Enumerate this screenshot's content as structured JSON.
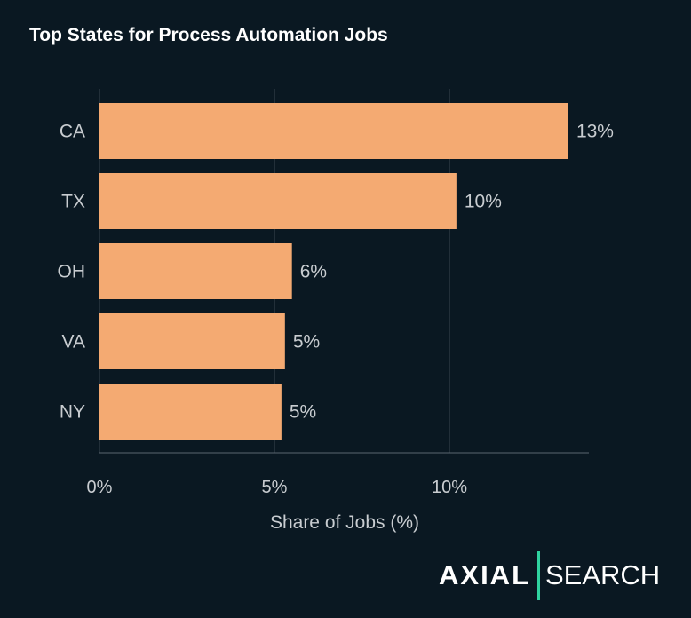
{
  "chart_data": {
    "type": "bar",
    "orientation": "horizontal",
    "title": "Top States for Process Automation Jobs",
    "xlabel": "Share of Jobs (%)",
    "ylabel": "",
    "categories": [
      "CA",
      "TX",
      "OH",
      "VA",
      "NY"
    ],
    "values": [
      13.4,
      10.2,
      5.5,
      5.3,
      5.2
    ],
    "data_labels": [
      "13%",
      "10%",
      "6%",
      "5%",
      "5%"
    ],
    "xlim": [
      0,
      14
    ],
    "xticks": [
      0,
      5,
      10
    ],
    "xtick_labels": [
      "0%",
      "5%",
      "10%"
    ],
    "grid": "vertical",
    "bar_color": "#f4aa72",
    "background": "#0a1822"
  },
  "logo": {
    "left": "AXIAL",
    "right": "SEARCH",
    "divider_color": "#2fd3a0"
  }
}
